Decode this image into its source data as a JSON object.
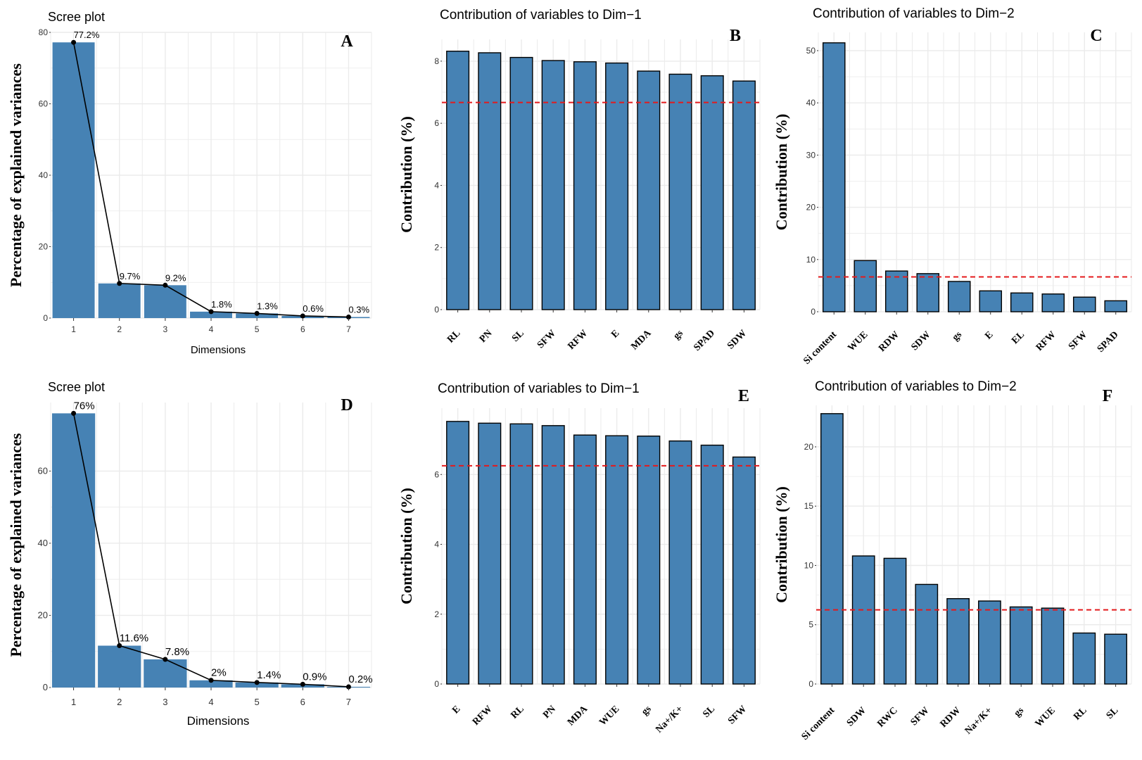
{
  "figure": {
    "colors": {
      "bar_fill": "#4682b4",
      "bar_outline": "#000000",
      "reference_line": "#e41a1c",
      "grid": "#ebebeb"
    }
  },
  "chart_data": [
    {
      "panel": "A",
      "type": "bar",
      "title": "Scree plot",
      "xlabel": "Dimensions",
      "ylabel": "Percentage of explained variances",
      "categories": [
        "1",
        "2",
        "3",
        "4",
        "5",
        "6",
        "7"
      ],
      "values": [
        77.2,
        9.7,
        9.2,
        1.8,
        1.3,
        0.6,
        0.3
      ],
      "data_labels": [
        "77.2%",
        "9.7%",
        "9.2%",
        "1.8%",
        "1.3%",
        "0.6%",
        "0.3%"
      ],
      "line_overlay": true,
      "ylim": [
        0,
        80
      ],
      "yticks": [
        0,
        20,
        40,
        60,
        80
      ],
      "grid": true
    },
    {
      "panel": "B",
      "type": "bar",
      "title": "Contribution of variables to Dim−1",
      "xlabel": "",
      "ylabel": "Contribution (%)",
      "categories": [
        "RL",
        "PN",
        "SL",
        "SFW",
        "RFW",
        "E",
        "MDA",
        "gs",
        "SPAD",
        "SDW"
      ],
      "values": [
        8.32,
        8.27,
        8.12,
        8.02,
        7.98,
        7.94,
        7.68,
        7.58,
        7.53,
        7.36
      ],
      "reference_line": 6.67,
      "ylim": [
        0,
        8.7
      ],
      "yticks": [
        0,
        2,
        4,
        6,
        8
      ],
      "grid": true
    },
    {
      "panel": "C",
      "type": "bar",
      "title": "Contribution of variables to Dim−2",
      "xlabel": "",
      "ylabel": "Contribution (%)",
      "categories": [
        "Si content",
        "WUE",
        "RDW",
        "SDW",
        "gs",
        "E",
        "EL",
        "RFW",
        "SFW",
        "SPAD"
      ],
      "values": [
        51.5,
        9.8,
        7.8,
        7.3,
        5.8,
        4.0,
        3.6,
        3.4,
        2.8,
        2.1
      ],
      "reference_line": 6.67,
      "ylim": [
        0,
        53.5
      ],
      "yticks": [
        0,
        10,
        20,
        30,
        40,
        50
      ],
      "grid": true
    },
    {
      "panel": "D",
      "type": "bar",
      "title": "Scree plot",
      "xlabel": "Dimensions",
      "ylabel": "Percentage of explained variances",
      "categories": [
        "1",
        "2",
        "3",
        "4",
        "5",
        "6",
        "7"
      ],
      "values": [
        76,
        11.6,
        7.8,
        2,
        1.4,
        0.9,
        0.2
      ],
      "data_labels": [
        "76%",
        "11.6%",
        "7.8%",
        "2%",
        "1.4%",
        "0.9%",
        "0.2%"
      ],
      "line_overlay": true,
      "ylim": [
        0,
        79
      ],
      "yticks": [
        0,
        20,
        40,
        60
      ],
      "grid": true
    },
    {
      "panel": "E",
      "type": "bar",
      "title": "Contribution of variables to Dim−1",
      "xlabel": "",
      "ylabel": "Contribution (%)",
      "categories": [
        "E",
        "RFW",
        "RL",
        "PN",
        "MDA",
        "WUE",
        "gs",
        "Na+/K+",
        "SL",
        "SFW"
      ],
      "values": [
        7.52,
        7.47,
        7.45,
        7.4,
        7.13,
        7.11,
        7.1,
        6.96,
        6.84,
        6.5
      ],
      "reference_line": 6.25,
      "ylim": [
        0,
        7.9
      ],
      "yticks": [
        0,
        2,
        4,
        6
      ],
      "grid": true
    },
    {
      "panel": "F",
      "type": "bar",
      "title": "Contribution of variables to Dim−2",
      "xlabel": "",
      "ylabel": "Contribution (%)",
      "categories": [
        "Si content",
        "SDW",
        "RWC",
        "SFW",
        "RDW",
        "Na+/K+",
        "gs",
        "WUE",
        "RL",
        "SL"
      ],
      "values": [
        22.8,
        10.8,
        10.6,
        8.4,
        7.2,
        7.0,
        6.5,
        6.4,
        4.3,
        4.2
      ],
      "reference_line": 6.25,
      "ylim": [
        0,
        23.5
      ],
      "yticks": [
        0,
        5,
        10,
        15,
        20
      ],
      "grid": true
    }
  ]
}
